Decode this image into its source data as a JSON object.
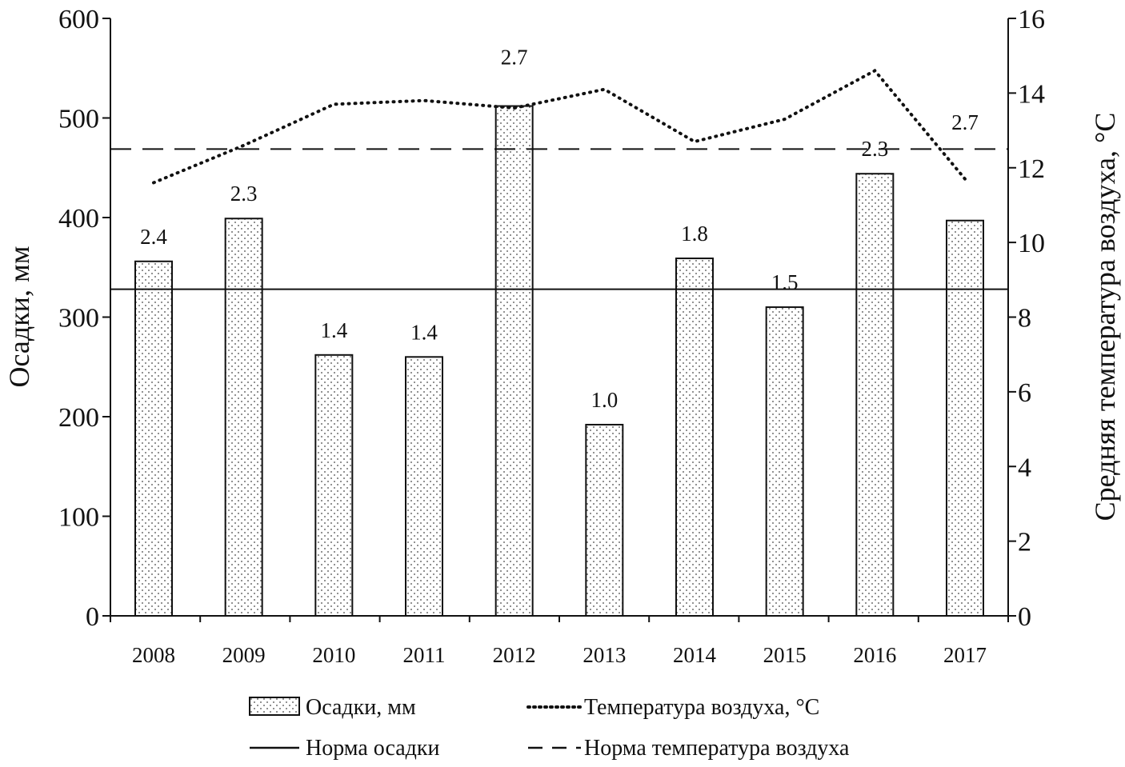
{
  "chart_data": {
    "type": "bar",
    "categories": [
      "2008",
      "2009",
      "2010",
      "2011",
      "2012",
      "2013",
      "2014",
      "2015",
      "2016",
      "2017"
    ],
    "series": [
      {
        "name": "Осадки, мм",
        "kind": "bar",
        "axis": "left",
        "values": [
          356,
          399,
          262,
          260,
          512,
          192,
          359,
          310,
          444,
          397
        ]
      },
      {
        "name": "Температура воздуха, °C",
        "kind": "line",
        "style": "dotted",
        "axis": "right",
        "values": [
          11.6,
          12.6,
          13.7,
          13.8,
          13.6,
          14.1,
          12.7,
          13.3,
          14.6,
          11.7
        ]
      }
    ],
    "reference_lines": [
      {
        "name": "Норма осадки",
        "style": "solid",
        "axis": "left",
        "value": 328
      },
      {
        "name": "Норма температура воздуха",
        "style": "dashed",
        "axis": "right",
        "value": 12.5
      }
    ],
    "annotations": [
      "2.4",
      "2.3",
      "1.4",
      "1.4",
      "2.7",
      "1.0",
      "1.8",
      "1.5",
      "2.3",
      "2.7"
    ],
    "ylabel": "Осадки, мм",
    "y2label": "Средняя температура воздуха, °C",
    "ylim": [
      0,
      600
    ],
    "y2lim": [
      0,
      16
    ],
    "yticks": [
      "0",
      "100",
      "200",
      "300",
      "400",
      "500",
      "600"
    ],
    "y2ticks": [
      "0",
      "2",
      "4",
      "6",
      "8",
      "10",
      "12",
      "14",
      "16"
    ],
    "grid": false,
    "legend_placement": "bottom",
    "bar_fill": "dotted"
  }
}
